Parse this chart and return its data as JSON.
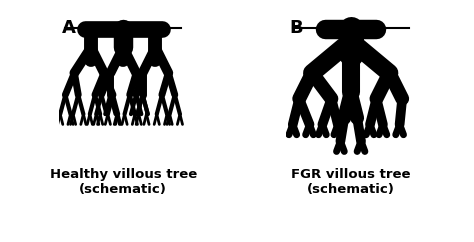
{
  "bg_color": "#ffffff",
  "label_A": "A",
  "label_B": "B",
  "caption_A_line1": "Healthy villous tree",
  "caption_A_line2": "(schematic)",
  "caption_B_line1": "FGR villous tree",
  "caption_B_line2": "(schematic)",
  "label_fontsize": 13,
  "caption_fontsize": 9.5,
  "fig_width": 4.74,
  "fig_height": 2.42,
  "dpi": 100
}
